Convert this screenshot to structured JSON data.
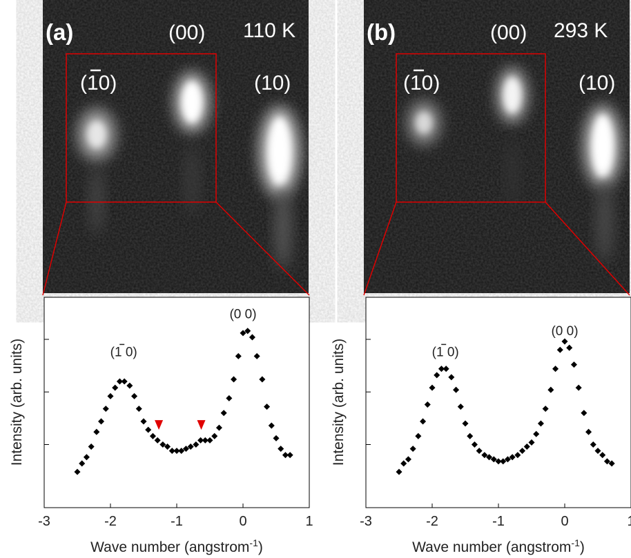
{
  "figure_colors": {
    "box": "#e00000",
    "marker": "#e00000",
    "points": "#000000",
    "image_bg": "#141414"
  },
  "panels": [
    {
      "label": "(a)",
      "temperature": "110 K",
      "spots": [
        {
          "label": "(̅1̅0)",
          "text": "(10)",
          "bar": true
        },
        {
          "label": "(00)",
          "text": "(00)",
          "bar": false
        },
        {
          "label": "(10)",
          "text": "(10)",
          "bar": false
        }
      ]
    },
    {
      "label": "(b)",
      "temperature": "293 K",
      "spots": [
        {
          "text": "(10)",
          "bar": true
        },
        {
          "text": "(00)",
          "bar": false
        },
        {
          "text": "(10)",
          "bar": false
        }
      ]
    }
  ],
  "chart_data": [
    {
      "type": "scatter",
      "xlabel": "Wave number (angstrom",
      "xlabel_sup": "-1",
      "xlabel_end": ")",
      "ylabel": "Intensity (arb. units)",
      "xlim": [
        -3,
        1
      ],
      "xticks": [
        "-3",
        "-2",
        "-1",
        "0",
        "1"
      ],
      "ylim": [
        0,
        1
      ],
      "yticks": [
        0.3,
        0.55,
        0.8
      ],
      "annotations": [
        {
          "text": "(1 0)",
          "bar_on": "1",
          "x": -1.8,
          "y": 0.72
        },
        {
          "text": "(0 0)",
          "x": 0,
          "y": 0.9
        }
      ],
      "markers": [
        {
          "x": -1.27,
          "y": 0.37
        },
        {
          "x": -0.63,
          "y": 0.37
        }
      ],
      "points": {
        "x": [
          -2.5,
          -2.43,
          -2.36,
          -2.29,
          -2.21,
          -2.14,
          -2.07,
          -2.0,
          -1.93,
          -1.86,
          -1.79,
          -1.71,
          -1.64,
          -1.57,
          -1.5,
          -1.43,
          -1.36,
          -1.29,
          -1.21,
          -1.14,
          -1.07,
          -1.0,
          -0.93,
          -0.86,
          -0.79,
          -0.71,
          -0.64,
          -0.57,
          -0.5,
          -0.43,
          -0.36,
          -0.29,
          -0.21,
          -0.14,
          -0.07,
          0.0,
          0.07,
          0.14,
          0.21,
          0.29,
          0.36,
          0.43,
          0.5,
          0.57,
          0.64,
          0.71
        ],
        "y": [
          0.17,
          0.21,
          0.24,
          0.29,
          0.36,
          0.41,
          0.47,
          0.53,
          0.57,
          0.6,
          0.6,
          0.58,
          0.53,
          0.47,
          0.41,
          0.37,
          0.34,
          0.32,
          0.3,
          0.29,
          0.27,
          0.27,
          0.27,
          0.28,
          0.29,
          0.3,
          0.32,
          0.32,
          0.32,
          0.34,
          0.38,
          0.45,
          0.52,
          0.61,
          0.72,
          0.83,
          0.84,
          0.81,
          0.72,
          0.61,
          0.48,
          0.39,
          0.33,
          0.28,
          0.25,
          0.25
        ]
      }
    },
    {
      "type": "scatter",
      "xlabel": "Wave number (angstrom",
      "xlabel_sup": "-1",
      "xlabel_end": ")",
      "ylabel": "Intensity (arb. units)",
      "xlim": [
        -3,
        1
      ],
      "xticks": [
        "-3",
        "-2",
        "-1",
        "0",
        "1"
      ],
      "ylim": [
        0,
        1
      ],
      "yticks": [
        0.3,
        0.55,
        0.8
      ],
      "annotations": [
        {
          "text": "(1 0)",
          "bar_on": "1",
          "x": -1.8,
          "y": 0.72
        },
        {
          "text": "(0 0)",
          "x": 0,
          "y": 0.82
        }
      ],
      "markers": [],
      "points": {
        "x": [
          -2.5,
          -2.43,
          -2.36,
          -2.29,
          -2.21,
          -2.14,
          -2.07,
          -2.0,
          -1.93,
          -1.86,
          -1.79,
          -1.71,
          -1.64,
          -1.57,
          -1.5,
          -1.43,
          -1.36,
          -1.29,
          -1.21,
          -1.14,
          -1.07,
          -1.0,
          -0.93,
          -0.86,
          -0.79,
          -0.71,
          -0.64,
          -0.57,
          -0.5,
          -0.43,
          -0.36,
          -0.29,
          -0.21,
          -0.14,
          -0.07,
          0.0,
          0.07,
          0.14,
          0.21,
          0.29,
          0.36,
          0.43,
          0.5,
          0.57,
          0.64,
          0.71
        ],
        "y": [
          0.17,
          0.21,
          0.23,
          0.28,
          0.34,
          0.41,
          0.49,
          0.57,
          0.63,
          0.66,
          0.66,
          0.62,
          0.56,
          0.48,
          0.4,
          0.34,
          0.3,
          0.27,
          0.25,
          0.24,
          0.23,
          0.22,
          0.22,
          0.23,
          0.24,
          0.25,
          0.27,
          0.29,
          0.31,
          0.35,
          0.4,
          0.47,
          0.56,
          0.66,
          0.75,
          0.79,
          0.76,
          0.68,
          0.57,
          0.45,
          0.36,
          0.3,
          0.27,
          0.25,
          0.22,
          0.21
        ]
      }
    }
  ]
}
